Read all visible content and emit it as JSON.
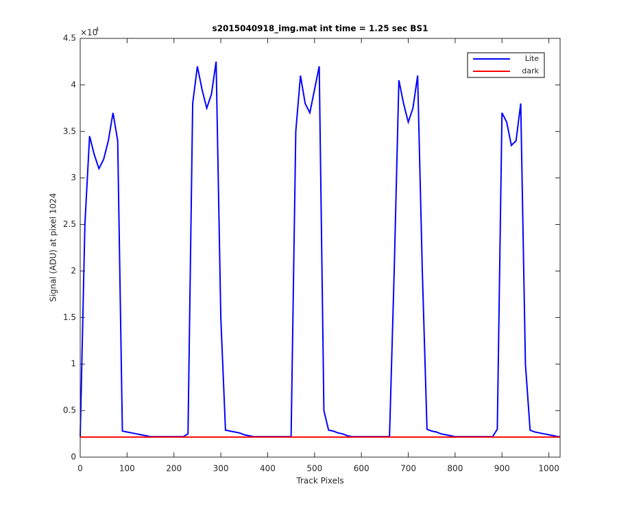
{
  "chart_data": {
    "type": "line",
    "title": "s2015040918_img.mat int time = 1.25 sec   BS1",
    "x_label": "Track Pixels",
    "y_label": "Signal (ADU) at pixel 1024",
    "y_multiplier": {
      "base": "×10",
      "exponent": "4"
    },
    "xlim": [
      0,
      1024
    ],
    "ylim": [
      0,
      4.5
    ],
    "xticks": [
      0,
      100,
      200,
      300,
      400,
      500,
      600,
      700,
      800,
      900,
      1000
    ],
    "yticks": [
      0,
      0.5,
      1,
      1.5,
      2,
      2.5,
      3,
      3.5,
      4,
      4.5
    ],
    "grid": false,
    "box": true,
    "legend_position": "northeast",
    "x": [
      0,
      10,
      20,
      30,
      40,
      50,
      60,
      70,
      80,
      90,
      100,
      110,
      120,
      130,
      140,
      150,
      160,
      170,
      180,
      190,
      200,
      210,
      220,
      230,
      240,
      250,
      260,
      270,
      280,
      290,
      300,
      310,
      320,
      330,
      340,
      350,
      360,
      370,
      380,
      390,
      400,
      410,
      420,
      430,
      440,
      450,
      460,
      470,
      480,
      490,
      500,
      510,
      520,
      530,
      540,
      550,
      560,
      570,
      580,
      590,
      600,
      610,
      620,
      630,
      640,
      650,
      660,
      670,
      680,
      690,
      700,
      710,
      720,
      730,
      740,
      750,
      760,
      770,
      780,
      790,
      800,
      810,
      820,
      830,
      840,
      850,
      860,
      870,
      880,
      890,
      900,
      910,
      920,
      930,
      940,
      950,
      960,
      970,
      980,
      990,
      1000,
      1010,
      1020,
      1024
    ],
    "series": [
      {
        "name": "Lite",
        "color": "#0000ff",
        "values": [
          0.22,
          2.5,
          3.45,
          3.25,
          3.1,
          3.2,
          3.4,
          3.7,
          3.4,
          0.28,
          0.27,
          0.26,
          0.25,
          0.24,
          0.23,
          0.22,
          0.22,
          0.22,
          0.22,
          0.22,
          0.22,
          0.22,
          0.22,
          0.25,
          3.8,
          4.2,
          3.95,
          3.75,
          3.9,
          4.25,
          1.5,
          0.29,
          0.28,
          0.27,
          0.26,
          0.24,
          0.23,
          0.22,
          0.22,
          0.22,
          0.22,
          0.22,
          0.22,
          0.22,
          0.22,
          0.22,
          3.5,
          4.1,
          3.8,
          3.7,
          3.95,
          4.2,
          0.5,
          0.29,
          0.28,
          0.26,
          0.25,
          0.23,
          0.22,
          0.22,
          0.22,
          0.22,
          0.22,
          0.22,
          0.22,
          0.22,
          0.22,
          2.0,
          4.05,
          3.8,
          3.6,
          3.75,
          4.1,
          2.0,
          0.3,
          0.28,
          0.27,
          0.25,
          0.24,
          0.23,
          0.22,
          0.22,
          0.22,
          0.22,
          0.22,
          0.22,
          0.22,
          0.22,
          0.22,
          0.3,
          3.7,
          3.6,
          3.35,
          3.4,
          3.8,
          1.0,
          0.29,
          0.27,
          0.26,
          0.25,
          0.24,
          0.23,
          0.22,
          0.22
        ]
      },
      {
        "name": "dark",
        "color": "#ff0000",
        "values": [
          0.215,
          0.215,
          0.215,
          0.215,
          0.215,
          0.215,
          0.215,
          0.215,
          0.215,
          0.215,
          0.215,
          0.215,
          0.215,
          0.215,
          0.215,
          0.215,
          0.215,
          0.215,
          0.215,
          0.215,
          0.215,
          0.215,
          0.215,
          0.215,
          0.215,
          0.215,
          0.215,
          0.215,
          0.215,
          0.215,
          0.215,
          0.215,
          0.215,
          0.215,
          0.215,
          0.215,
          0.215,
          0.215,
          0.215,
          0.215,
          0.215,
          0.215,
          0.215,
          0.215,
          0.215,
          0.215,
          0.215,
          0.215,
          0.215,
          0.215,
          0.215,
          0.215,
          0.215,
          0.215,
          0.215,
          0.215,
          0.215,
          0.215,
          0.215,
          0.215,
          0.215,
          0.215,
          0.215,
          0.215,
          0.215,
          0.215,
          0.215,
          0.215,
          0.215,
          0.215,
          0.215,
          0.215,
          0.215,
          0.215,
          0.215,
          0.215,
          0.215,
          0.215,
          0.215,
          0.215,
          0.215,
          0.215,
          0.215,
          0.215,
          0.215,
          0.215,
          0.215,
          0.215,
          0.215,
          0.215,
          0.215,
          0.215,
          0.215,
          0.215,
          0.215,
          0.215,
          0.215,
          0.215,
          0.215,
          0.215,
          0.215,
          0.215,
          0.215,
          0.215
        ]
      }
    ]
  }
}
